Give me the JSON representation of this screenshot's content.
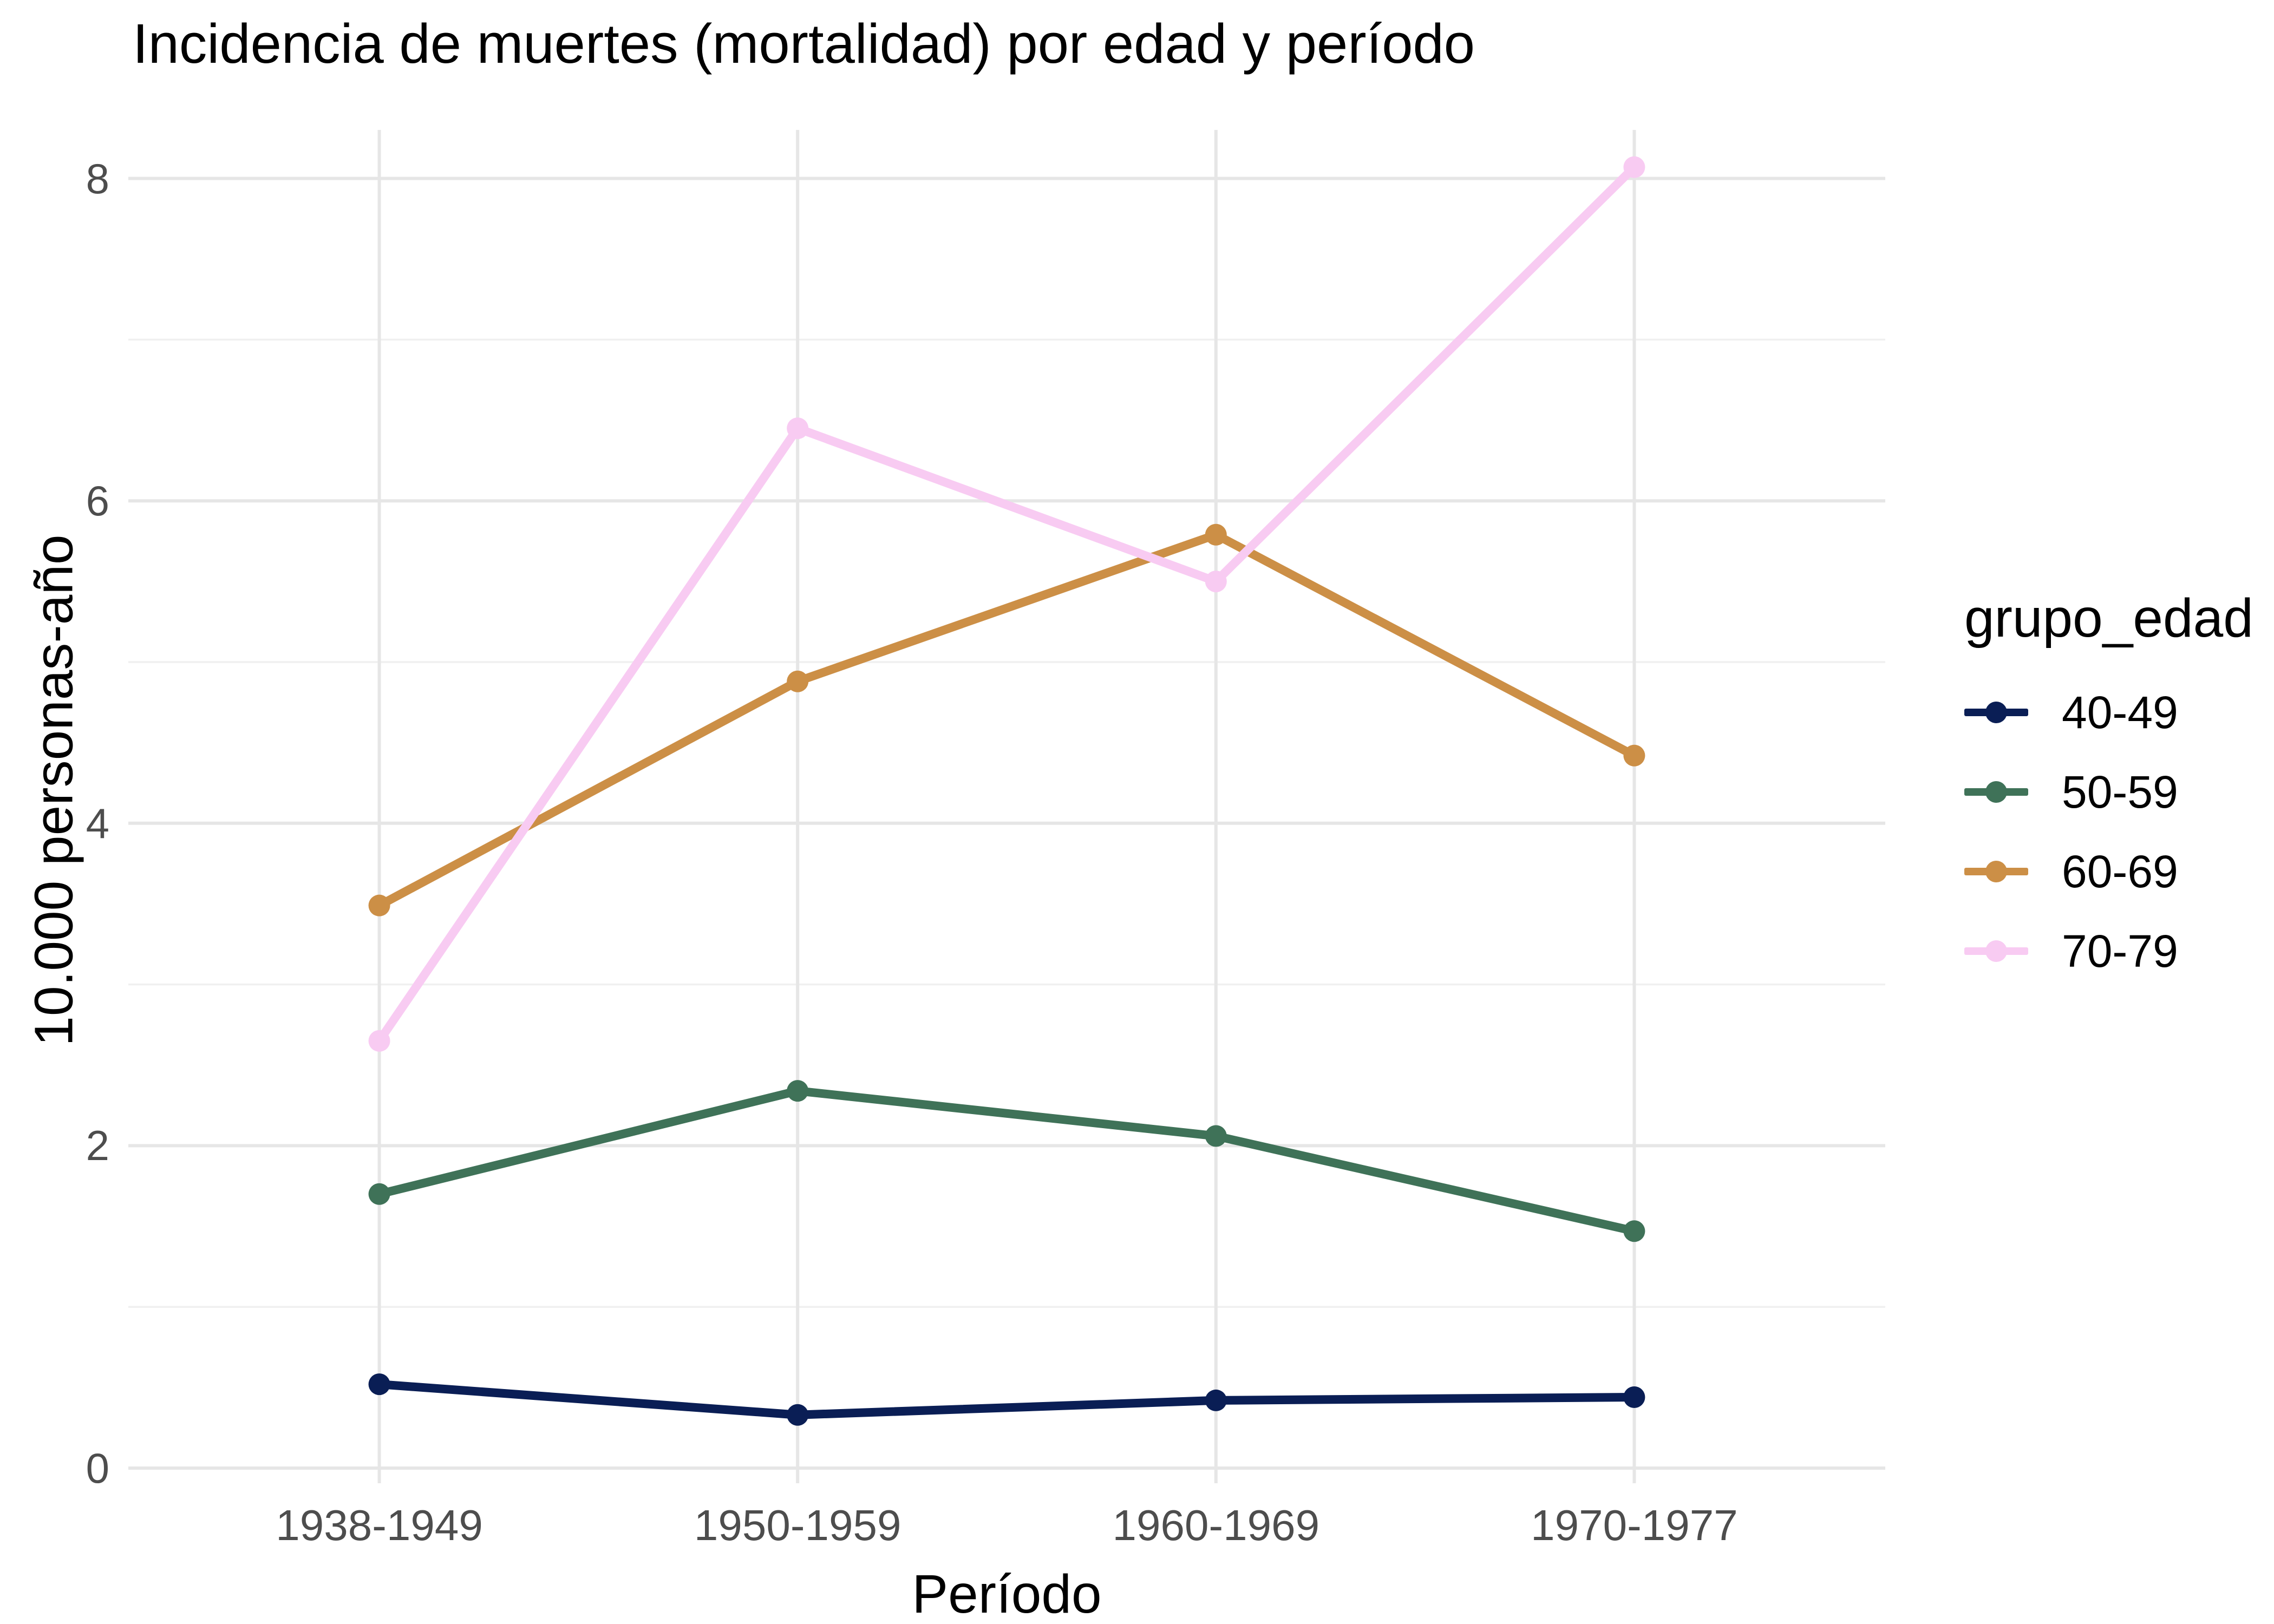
{
  "title": "Incidencia de muertes (mortalidad) por edad y período",
  "styles": {
    "background": "#ffffff",
    "grid_major_color": "#e6e6e6",
    "grid_minor_color": "#f0f0f0",
    "tick_label_color": "#4d4d4d",
    "text_color": "#000000"
  },
  "chart_data": {
    "type": "line",
    "title": "Incidencia de muertes (mortalidad) por edad y período",
    "xlabel": "Período",
    "ylabel": "10.000 personas-año",
    "categories": [
      "1938-1949",
      "1950-1959",
      "1960-1969",
      "1970-1977"
    ],
    "series": [
      {
        "name": "40-49",
        "color": "#0a1e55",
        "values": [
          0.52,
          0.33,
          0.42,
          0.44
        ]
      },
      {
        "name": "50-59",
        "color": "#3f7258",
        "values": [
          1.7,
          2.34,
          2.06,
          1.47
        ]
      },
      {
        "name": "60-69",
        "color": "#cc8f46",
        "values": [
          3.49,
          4.88,
          5.79,
          4.42
        ]
      },
      {
        "name": "70-79",
        "color": "#f8cbf2",
        "values": [
          2.65,
          6.45,
          5.5,
          8.07
        ]
      }
    ],
    "yticks": [
      0,
      2,
      4,
      6,
      8
    ],
    "y_minor_ticks": [
      1,
      3,
      5,
      7
    ],
    "ylim": [
      0,
      8.3
    ],
    "grid": true,
    "legend_title": "grupo_edad",
    "legend_position": "right"
  }
}
